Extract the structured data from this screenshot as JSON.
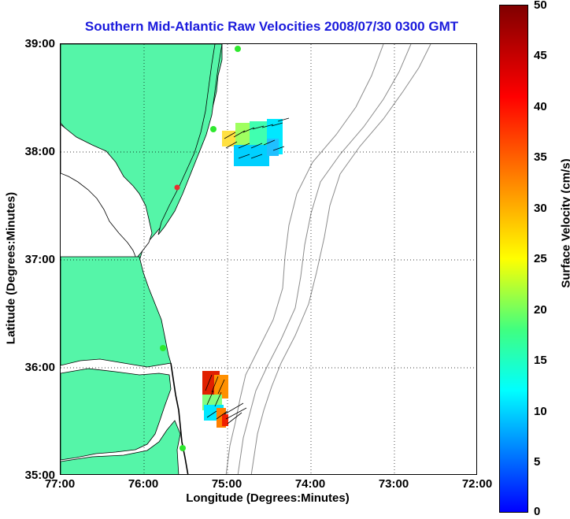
{
  "title": "Southern Mid-Atlantic Raw Velocities 2008/07/30 0300 GMT",
  "axes": {
    "xlabel": "Longitude (Degrees:Minutes)",
    "ylabel": "Latitude (Degrees:Minutes)",
    "xticks": [
      "77:00",
      "76:00",
      "75:00",
      "74:00",
      "73:00",
      "72:00"
    ],
    "yticks": [
      "39:00",
      "38:00",
      "37:00",
      "36:00",
      "35:00"
    ]
  },
  "colorbar": {
    "label": "Surface Velocity (cm/s)",
    "ticks": [
      "50",
      "45",
      "40",
      "35",
      "30",
      "25",
      "20",
      "15",
      "10",
      "5",
      "0"
    ]
  },
  "colors": {
    "land": "#55f5a8",
    "coastline": "#000000",
    "bathymetry": "#8c8c8c",
    "station": "#2ee82e",
    "station_alt": "#e83030"
  }
}
